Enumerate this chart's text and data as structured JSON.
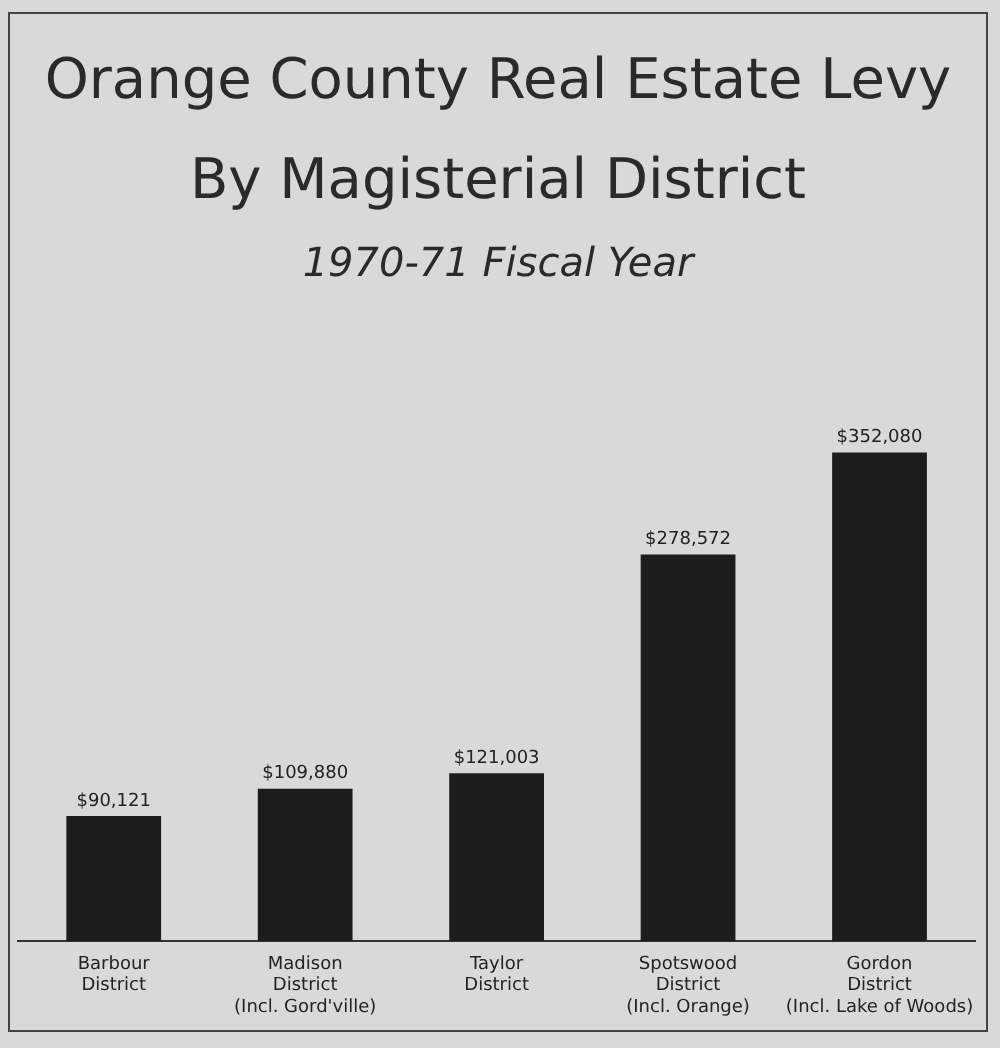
{
  "chart_data": {
    "type": "bar",
    "title": "Orange County Real Estate Levy\nBy Magisterial District",
    "subtitle": "1970-71 Fiscal Year",
    "categories": [
      "Barbour\nDistrict",
      "Madison\nDistrict\n(Incl. Gord'ville)",
      "Taylor\nDistrict",
      "Spotswood\nDistrict\n(Incl. Orange)",
      "Gordon\nDistrict\n(Incl. Lake of Woods)"
    ],
    "values": [
      90121,
      109880,
      121003,
      278572,
      352080
    ],
    "value_labels": [
      "$90,121",
      "$109,880",
      "$121,003",
      "$278,572",
      "$352,080"
    ],
    "color": "#1c1c1c",
    "grid": false,
    "legend": false
  }
}
